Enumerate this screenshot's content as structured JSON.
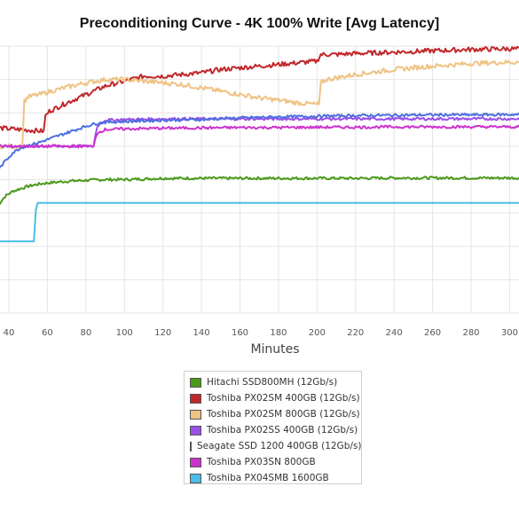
{
  "chart_data": {
    "type": "line",
    "title": "Preconditioning Curve - 4K 100% Write [Avg Latency]",
    "xlabel": "Minutes",
    "ylabel": "",
    "xlim": [
      34,
      310
    ],
    "ylim": [
      0,
      8
    ],
    "xticks": [
      40,
      60,
      80,
      100,
      120,
      140,
      160,
      180,
      200,
      220,
      240,
      260,
      280,
      300
    ],
    "grid": true,
    "legend_position": "bottom",
    "series": [
      {
        "name": "Hitachi SSD800MH (12Gb/s)",
        "color": "#4a9a1a",
        "x": [
          34,
          38,
          42,
          46,
          50,
          55,
          60,
          70,
          80,
          90,
          100,
          110,
          120,
          140,
          160,
          180,
          200,
          220,
          240,
          260,
          280,
          300,
          310
        ],
        "y": [
          3.2,
          3.5,
          3.65,
          3.73,
          3.8,
          3.86,
          3.9,
          3.95,
          3.98,
          4.0,
          4.0,
          4.02,
          4.04,
          4.04,
          4.04,
          4.04,
          4.04,
          4.04,
          4.05,
          4.05,
          4.05,
          4.05,
          4.05
        ]
      },
      {
        "name": "Toshiba PX02SM 400GB (12Gb/s)",
        "color": "#c0282c",
        "x": [
          34,
          58,
          59,
          61,
          70,
          80,
          90,
          100,
          110,
          120,
          130,
          140,
          150,
          160,
          170,
          180,
          190,
          200,
          202,
          210,
          220,
          240,
          260,
          280,
          300,
          310
        ],
        "y": [
          5.55,
          5.45,
          5.9,
          6.05,
          6.3,
          6.55,
          6.8,
          6.95,
          7.1,
          7.1,
          7.15,
          7.2,
          7.3,
          7.35,
          7.4,
          7.45,
          7.5,
          7.55,
          7.75,
          7.75,
          7.78,
          7.82,
          7.86,
          7.9,
          7.92,
          7.9
        ]
      },
      {
        "name": "Toshiba PX02SM 800GB (12Gb/s)",
        "color": "#efc384",
        "x": [
          34,
          47,
          48,
          50,
          56,
          60,
          70,
          80,
          90,
          100,
          110,
          120,
          130,
          140,
          150,
          160,
          170,
          180,
          190,
          201,
          202,
          205,
          220,
          240,
          260,
          280,
          300,
          310
        ],
        "y": [
          5.0,
          5.0,
          6.35,
          6.48,
          6.55,
          6.62,
          6.77,
          6.9,
          7.0,
          7.0,
          6.95,
          6.9,
          6.85,
          6.75,
          6.65,
          6.55,
          6.45,
          6.38,
          6.3,
          6.25,
          6.9,
          7.0,
          7.15,
          7.3,
          7.4,
          7.48,
          7.52,
          7.5
        ]
      },
      {
        "name": "Toshiba PX02SS 400GB (12Gb/s)",
        "color": "#9a4fe8",
        "x": [
          34,
          84,
          85,
          86,
          88,
          90,
          100,
          120,
          140,
          160,
          180,
          200,
          220,
          240,
          260,
          280,
          300,
          310
        ],
        "y": [
          5.0,
          5.0,
          5.35,
          5.6,
          5.72,
          5.78,
          5.8,
          5.82,
          5.82,
          5.82,
          5.82,
          5.82,
          5.82,
          5.82,
          5.82,
          5.82,
          5.82,
          5.82
        ]
      },
      {
        "name": "Seagate SSD 1200 400GB (12Gb/s)",
        "color": "#4d6fe0",
        "x": [
          34,
          38,
          42,
          46,
          50,
          55,
          60,
          65,
          70,
          75,
          80,
          85,
          90,
          100,
          110,
          120,
          140,
          160,
          180,
          200,
          220,
          240,
          260,
          280,
          300,
          310
        ],
        "y": [
          4.25,
          4.55,
          4.8,
          4.95,
          5.02,
          5.1,
          5.2,
          5.3,
          5.4,
          5.5,
          5.6,
          5.68,
          5.72,
          5.74,
          5.76,
          5.78,
          5.8,
          5.85,
          5.88,
          5.9,
          5.92,
          5.93,
          5.94,
          5.94,
          5.95,
          5.95
        ]
      },
      {
        "name": "Toshiba PX03SN 800GB",
        "color": "#cc33cc",
        "x": [
          34,
          84,
          85,
          86,
          88,
          90,
          100,
          120,
          140,
          160,
          180,
          200,
          220,
          240,
          260,
          280,
          300,
          310
        ],
        "y": [
          5.0,
          5.0,
          5.25,
          5.4,
          5.45,
          5.5,
          5.52,
          5.54,
          5.55,
          5.56,
          5.56,
          5.57,
          5.57,
          5.58,
          5.58,
          5.58,
          5.58,
          5.58
        ]
      },
      {
        "name": "Toshiba PX04SMB 1600GB",
        "color": "#4bbde8",
        "x": [
          34,
          53,
          54,
          55,
          60,
          80,
          100,
          120,
          140,
          160,
          180,
          200,
          220,
          240,
          260,
          280,
          300,
          310
        ],
        "y": [
          2.15,
          2.15,
          3.1,
          3.3,
          3.3,
          3.3,
          3.3,
          3.3,
          3.3,
          3.3,
          3.3,
          3.3,
          3.3,
          3.3,
          3.3,
          3.3,
          3.3,
          3.3
        ]
      }
    ]
  }
}
